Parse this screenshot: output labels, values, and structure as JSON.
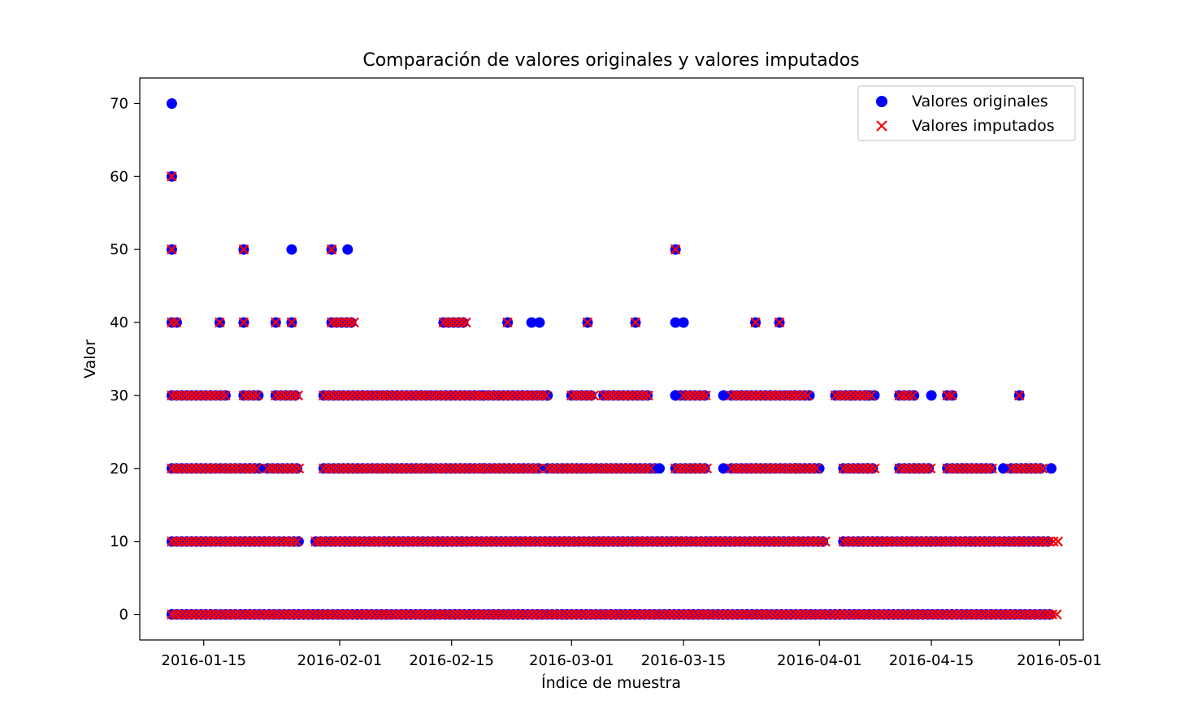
{
  "chart_data": {
    "type": "scatter",
    "title": "Comparación de valores originales y valores imputados",
    "xlabel": "Índice de muestra",
    "ylabel": "Valor",
    "x_type": "date",
    "xlim": [
      "2016-01-07",
      "2016-05-04"
    ],
    "ylim": [
      -3.5,
      73.5
    ],
    "x_ticks": [
      "2016-01-15",
      "2016-02-01",
      "2016-02-15",
      "2016-03-01",
      "2016-03-15",
      "2016-04-01",
      "2016-04-15",
      "2016-05-01"
    ],
    "y_ticks": [
      0,
      10,
      20,
      30,
      40,
      50,
      60,
      70
    ],
    "grid": false,
    "legend_position": "top-right",
    "series": [
      {
        "name": "Valores originales",
        "marker": "circle",
        "color": "#0000ff",
        "dense_ranges": [
          {
            "y": 0,
            "from": "2016-01-11",
            "to": "2016-04-30"
          },
          {
            "y": 10,
            "from": "2016-01-11",
            "to": "2016-01-27"
          },
          {
            "y": 10,
            "from": "2016-01-29",
            "to": "2016-04-02"
          },
          {
            "y": 10,
            "from": "2016-04-04",
            "to": "2016-04-30"
          },
          {
            "y": 20,
            "from": "2016-01-11",
            "to": "2016-01-22"
          },
          {
            "y": 20,
            "from": "2016-01-23",
            "to": "2016-01-27"
          },
          {
            "y": 20,
            "from": "2016-01-30",
            "to": "2016-02-26"
          },
          {
            "y": 20,
            "from": "2016-02-27",
            "to": "2016-03-12"
          },
          {
            "y": 20,
            "from": "2016-03-14",
            "to": "2016-03-18"
          },
          {
            "y": 20,
            "from": "2016-03-21",
            "to": "2016-04-01"
          },
          {
            "y": 20,
            "from": "2016-04-04",
            "to": "2016-04-08"
          },
          {
            "y": 20,
            "from": "2016-04-11",
            "to": "2016-04-15"
          },
          {
            "y": 20,
            "from": "2016-04-17",
            "to": "2016-04-23"
          },
          {
            "y": 20,
            "from": "2016-04-25",
            "to": "2016-04-29"
          },
          {
            "y": 30,
            "from": "2016-01-11",
            "to": "2016-01-18"
          },
          {
            "y": 30,
            "from": "2016-01-20",
            "to": "2016-01-22"
          },
          {
            "y": 30,
            "from": "2016-01-24",
            "to": "2016-01-27"
          },
          {
            "y": 30,
            "from": "2016-01-30",
            "to": "2016-02-19"
          },
          {
            "y": 30,
            "from": "2016-02-19",
            "to": "2016-02-27"
          },
          {
            "y": 30,
            "from": "2016-03-01",
            "to": "2016-03-04"
          },
          {
            "y": 30,
            "from": "2016-03-05",
            "to": "2016-03-11"
          },
          {
            "y": 30,
            "from": "2016-03-14",
            "to": "2016-03-18"
          },
          {
            "y": 30,
            "from": "2016-03-21",
            "to": "2016-03-31"
          },
          {
            "y": 30,
            "from": "2016-04-03",
            "to": "2016-04-08"
          },
          {
            "y": 30,
            "from": "2016-04-11",
            "to": "2016-04-13"
          },
          {
            "y": 30,
            "from": "2016-04-17",
            "to": "2016-04-18"
          },
          {
            "y": 40,
            "from": "2016-01-11",
            "to": "2016-01-12"
          },
          {
            "y": 40,
            "from": "2016-01-31",
            "to": "2016-02-03"
          },
          {
            "y": 40,
            "from": "2016-02-14",
            "to": "2016-02-17"
          }
        ],
        "points": [
          {
            "x": "2016-01-11",
            "y": 70
          },
          {
            "x": "2016-01-11",
            "y": 60
          },
          {
            "x": "2016-01-11",
            "y": 50
          },
          {
            "x": "2016-01-20",
            "y": 50
          },
          {
            "x": "2016-01-26",
            "y": 50
          },
          {
            "x": "2016-01-31",
            "y": 50
          },
          {
            "x": "2016-02-02",
            "y": 50
          },
          {
            "x": "2016-03-14",
            "y": 50
          },
          {
            "x": "2016-01-17",
            "y": 40
          },
          {
            "x": "2016-01-20",
            "y": 40
          },
          {
            "x": "2016-01-24",
            "y": 40
          },
          {
            "x": "2016-01-26",
            "y": 40
          },
          {
            "x": "2016-02-22",
            "y": 40
          },
          {
            "x": "2016-02-25",
            "y": 40
          },
          {
            "x": "2016-02-26",
            "y": 40
          },
          {
            "x": "2016-03-03",
            "y": 40
          },
          {
            "x": "2016-03-09",
            "y": 40
          },
          {
            "x": "2016-03-14",
            "y": 40
          },
          {
            "x": "2016-03-15",
            "y": 40
          },
          {
            "x": "2016-03-24",
            "y": 40
          },
          {
            "x": "2016-03-27",
            "y": 40
          },
          {
            "x": "2016-02-19",
            "y": 30
          },
          {
            "x": "2016-02-27",
            "y": 30
          },
          {
            "x": "2016-03-14",
            "y": 30
          },
          {
            "x": "2016-03-20",
            "y": 30
          },
          {
            "x": "2016-04-05",
            "y": 30
          },
          {
            "x": "2016-04-07",
            "y": 30
          },
          {
            "x": "2016-04-15",
            "y": 30
          },
          {
            "x": "2016-04-26",
            "y": 30
          },
          {
            "x": "2016-02-19",
            "y": 20
          },
          {
            "x": "2016-03-12",
            "y": 20
          },
          {
            "x": "2016-03-20",
            "y": 20
          },
          {
            "x": "2016-03-29",
            "y": 20
          },
          {
            "x": "2016-04-07",
            "y": 20
          },
          {
            "x": "2016-04-24",
            "y": 20
          },
          {
            "x": "2016-04-30",
            "y": 20
          }
        ]
      },
      {
        "name": "Valores imputados",
        "marker": "x",
        "color": "#ff0000",
        "dense_ranges": [
          {
            "y": 0,
            "from": "2016-01-11",
            "to": "2016-05-01"
          },
          {
            "y": 10,
            "from": "2016-01-11",
            "to": "2016-01-27"
          },
          {
            "y": 10,
            "from": "2016-01-29",
            "to": "2016-04-02"
          },
          {
            "y": 10,
            "from": "2016-04-04",
            "to": "2016-05-01"
          },
          {
            "y": 20,
            "from": "2016-01-11",
            "to": "2016-01-22"
          },
          {
            "y": 20,
            "from": "2016-01-23",
            "to": "2016-01-27"
          },
          {
            "y": 20,
            "from": "2016-01-30",
            "to": "2016-02-26"
          },
          {
            "y": 20,
            "from": "2016-02-27",
            "to": "2016-03-11"
          },
          {
            "y": 20,
            "from": "2016-03-14",
            "to": "2016-03-18"
          },
          {
            "y": 20,
            "from": "2016-03-21",
            "to": "2016-04-01"
          },
          {
            "y": 20,
            "from": "2016-04-04",
            "to": "2016-04-08"
          },
          {
            "y": 20,
            "from": "2016-04-11",
            "to": "2016-04-15"
          },
          {
            "y": 20,
            "from": "2016-04-17",
            "to": "2016-04-23"
          },
          {
            "y": 20,
            "from": "2016-04-25",
            "to": "2016-04-29"
          },
          {
            "y": 30,
            "from": "2016-01-11",
            "to": "2016-01-18"
          },
          {
            "y": 30,
            "from": "2016-01-20",
            "to": "2016-01-22"
          },
          {
            "y": 30,
            "from": "2016-01-24",
            "to": "2016-01-27"
          },
          {
            "y": 30,
            "from": "2016-01-30",
            "to": "2016-02-19"
          },
          {
            "y": 30,
            "from": "2016-02-19",
            "to": "2016-02-27"
          },
          {
            "y": 30,
            "from": "2016-03-01",
            "to": "2016-03-04"
          },
          {
            "y": 30,
            "from": "2016-03-05",
            "to": "2016-03-11"
          },
          {
            "y": 30,
            "from": "2016-03-15",
            "to": "2016-03-18"
          },
          {
            "y": 30,
            "from": "2016-03-21",
            "to": "2016-03-31"
          },
          {
            "y": 30,
            "from": "2016-04-03",
            "to": "2016-04-08"
          },
          {
            "y": 30,
            "from": "2016-04-11",
            "to": "2016-04-13"
          },
          {
            "y": 30,
            "from": "2016-04-17",
            "to": "2016-04-18"
          },
          {
            "y": 40,
            "from": "2016-01-11",
            "to": "2016-01-12"
          },
          {
            "y": 40,
            "from": "2016-01-31",
            "to": "2016-02-03"
          },
          {
            "y": 40,
            "from": "2016-02-14",
            "to": "2016-02-17"
          }
        ],
        "points": [
          {
            "x": "2016-01-11",
            "y": 60
          },
          {
            "x": "2016-01-11",
            "y": 50
          },
          {
            "x": "2016-01-20",
            "y": 50
          },
          {
            "x": "2016-01-31",
            "y": 50
          },
          {
            "x": "2016-03-14",
            "y": 50
          },
          {
            "x": "2016-01-17",
            "y": 40
          },
          {
            "x": "2016-01-20",
            "y": 40
          },
          {
            "x": "2016-01-24",
            "y": 40
          },
          {
            "x": "2016-01-26",
            "y": 40
          },
          {
            "x": "2016-02-22",
            "y": 40
          },
          {
            "x": "2016-03-03",
            "y": 40
          },
          {
            "x": "2016-03-09",
            "y": 40
          },
          {
            "x": "2016-03-24",
            "y": 40
          },
          {
            "x": "2016-03-27",
            "y": 40
          },
          {
            "x": "2016-04-26",
            "y": 30
          }
        ]
      }
    ]
  }
}
